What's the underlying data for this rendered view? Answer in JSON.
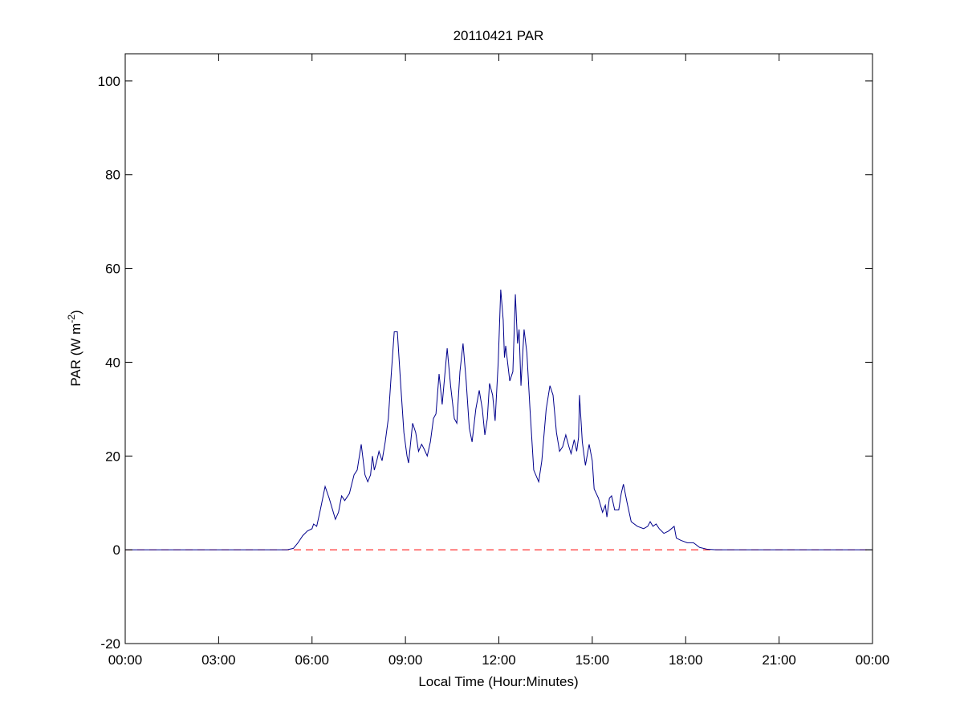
{
  "chart_data": {
    "type": "line",
    "title": "20110421 PAR",
    "xlabel": "Local Time (Hour:Minutes)",
    "ylabel": [
      "PAR (W m",
      "-2",
      ")"
    ],
    "xlim": [
      0,
      24
    ],
    "ylim": [
      -20,
      105.8
    ],
    "xticks": [
      {
        "value": 0,
        "label": "00:00"
      },
      {
        "value": 3,
        "label": "03:00"
      },
      {
        "value": 6,
        "label": "06:00"
      },
      {
        "value": 9,
        "label": "09:00"
      },
      {
        "value": 12,
        "label": "12:00"
      },
      {
        "value": 15,
        "label": "15:00"
      },
      {
        "value": 18,
        "label": "18:00"
      },
      {
        "value": 21,
        "label": "21:00"
      },
      {
        "value": 24,
        "label": "00:00"
      }
    ],
    "yticks": [
      -20,
      0,
      20,
      40,
      60,
      80,
      100
    ],
    "grid": false,
    "reference_line": {
      "value": 0,
      "color": "#ff0000",
      "dashed": true
    },
    "series": [
      {
        "color": "#00008b",
        "x": [
          0,
          5.2,
          5.4,
          5.55,
          5.7,
          5.85,
          6.0,
          6.05,
          6.15,
          6.25,
          6.42,
          6.55,
          6.75,
          6.85,
          6.95,
          7.05,
          7.2,
          7.35,
          7.45,
          7.58,
          7.7,
          7.79,
          7.88,
          7.94,
          8.0,
          8.08,
          8.15,
          8.25,
          8.35,
          8.45,
          8.55,
          8.64,
          8.74,
          8.85,
          8.95,
          9.05,
          9.1,
          9.23,
          9.33,
          9.42,
          9.52,
          9.6,
          9.7,
          9.8,
          9.9,
          9.98,
          10.08,
          10.18,
          10.34,
          10.45,
          10.57,
          10.65,
          10.75,
          10.85,
          10.95,
          11.05,
          11.14,
          11.26,
          11.37,
          11.47,
          11.55,
          11.63,
          11.7,
          11.8,
          11.88,
          11.98,
          12.06,
          12.14,
          12.18,
          12.22,
          12.28,
          12.35,
          12.45,
          12.53,
          12.6,
          12.65,
          12.71,
          12.81,
          12.9,
          13.0,
          13.12,
          13.28,
          13.38,
          13.52,
          13.64,
          13.74,
          13.85,
          13.95,
          14.05,
          14.15,
          14.25,
          14.32,
          14.42,
          14.5,
          14.56,
          14.59,
          14.68,
          14.78,
          14.9,
          15.0,
          15.06,
          15.2,
          15.33,
          15.42,
          15.47,
          15.55,
          15.62,
          15.72,
          15.85,
          15.93,
          16.0,
          16.12,
          16.25,
          16.45,
          16.65,
          16.78,
          16.86,
          16.95,
          17.05,
          17.15,
          17.3,
          17.45,
          17.63,
          17.7,
          17.85,
          18.05,
          18.25,
          18.45,
          18.7,
          19.0,
          24
        ],
        "values": [
          0,
          0,
          0.3,
          1.5,
          3,
          4,
          4.5,
          5.5,
          5,
          8,
          13.5,
          11,
          6.5,
          8,
          11.5,
          10.5,
          12,
          16,
          17,
          22.5,
          16,
          14.5,
          16,
          20,
          17,
          19,
          21,
          19,
          23,
          28,
          38,
          46.5,
          46.5,
          35,
          25,
          20,
          18.5,
          27,
          25,
          21,
          22.5,
          21.5,
          20,
          23,
          28,
          29,
          37.5,
          31,
          43,
          35,
          28,
          27,
          38,
          44,
          36,
          26,
          23,
          30,
          34,
          30,
          24.5,
          28,
          35.5,
          33,
          27.5,
          40,
          55.5,
          49,
          41,
          43.5,
          40,
          36,
          38,
          54.5,
          44,
          47,
          35,
          47,
          42,
          30,
          17,
          14.5,
          19,
          30,
          35,
          33,
          25,
          21,
          22,
          24.5,
          22,
          20.5,
          23.5,
          21,
          24,
          33,
          23,
          18,
          22.5,
          19,
          13,
          11,
          8,
          9.5,
          7,
          11,
          11.5,
          8.5,
          8.5,
          12,
          14,
          10,
          6,
          5,
          4.5,
          5,
          6,
          5,
          5.5,
          4.5,
          3.5,
          4,
          5,
          2.5,
          2,
          1.5,
          1.5,
          0.5,
          0.1,
          0,
          0
        ]
      }
    ]
  }
}
